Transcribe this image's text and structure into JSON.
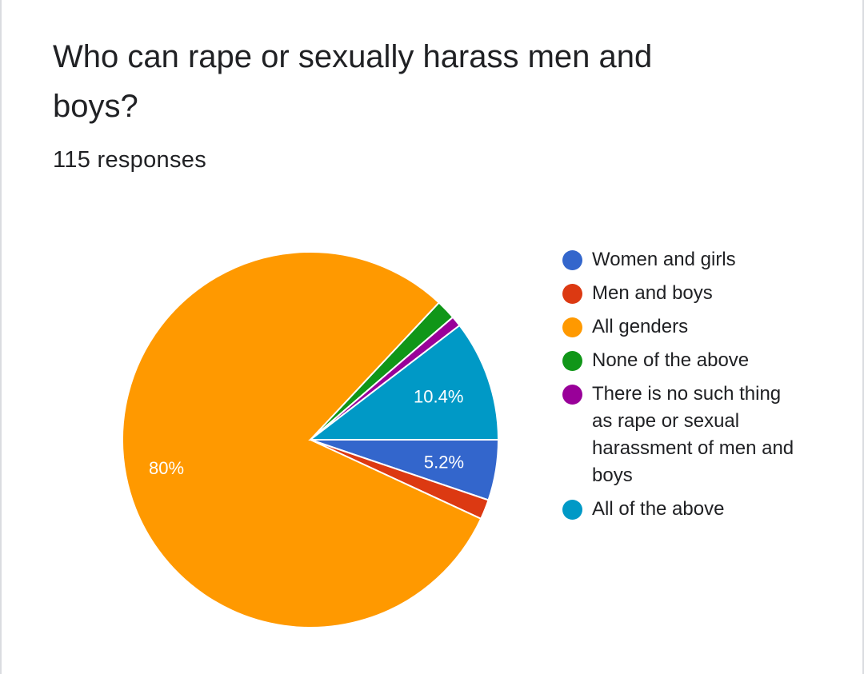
{
  "header": {
    "title": "Who can rape or sexually harass men and boys?",
    "subtitle": "115 responses"
  },
  "chart_data": {
    "type": "pie",
    "title": "Who can rape or sexually harass men and boys?",
    "legend_position": "right",
    "slices": [
      {
        "name": "Women and girls",
        "value": 5.2,
        "label": "5.2%",
        "color": "#3366cc"
      },
      {
        "name": "Men and boys",
        "value": 1.7,
        "label": "",
        "color": "#dc3912"
      },
      {
        "name": "All genders",
        "value": 80,
        "label": "80%",
        "color": "#ff9900"
      },
      {
        "name": "None of the above",
        "value": 1.7,
        "label": "",
        "color": "#109618"
      },
      {
        "name": "There is no such thing as rape or sexual harassment of men and boys",
        "value": 0.9,
        "label": "",
        "color": "#990099"
      },
      {
        "name": "All of the above",
        "value": 10.4,
        "label": "10.4%",
        "color": "#0099c6"
      }
    ]
  }
}
